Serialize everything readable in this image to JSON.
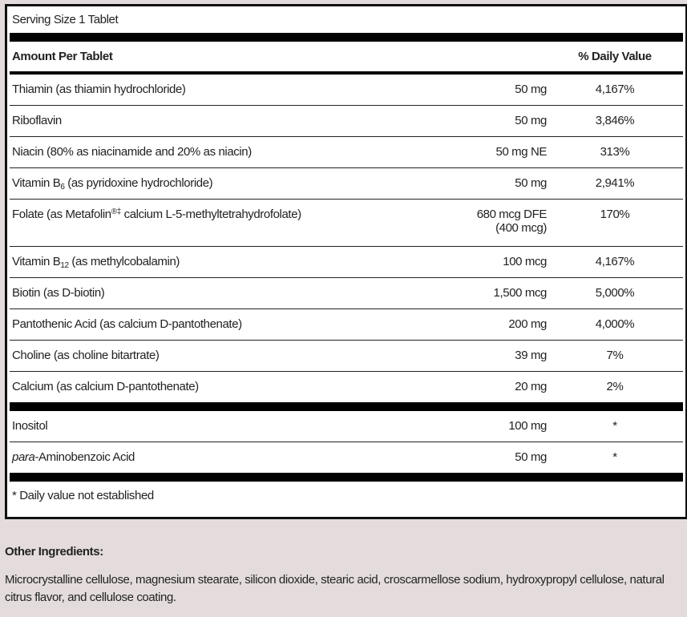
{
  "serving_size": "Serving Size 1 Tablet",
  "header": {
    "amount": "Amount Per Tablet",
    "dv": "% Daily Value"
  },
  "rows": [
    {
      "name": "Thiamin (as thiamin hydrochloride)",
      "amount": "50 mg",
      "dv": "4,167%"
    },
    {
      "name": "Riboflavin",
      "amount": "50 mg",
      "dv": "3,846%"
    },
    {
      "name": "Niacin (80% as niacinamide and 20% as niacin)",
      "amount": "50 mg NE",
      "dv": "313%"
    },
    {
      "name_pre": "Vitamin B",
      "name_sub": "6",
      "name_post": " (as pyridoxine hydrochloride)",
      "amount": "50 mg",
      "dv": "2,941%"
    },
    {
      "name_pre": "Folate (as Metafolin",
      "name_sup": "®‡",
      "name_post": " calcium L-5-methyltetrahydrofolate)",
      "amount": "680 mcg DFE",
      "amount2": "(400 mcg)",
      "dv": "170%"
    },
    {
      "name_pre": "Vitamin B",
      "name_sub": "12",
      "name_post": " (as methylcobalamin)",
      "amount": "100 mcg",
      "dv": "4,167%"
    },
    {
      "name": "Biotin (as D-biotin)",
      "amount": "1,500 mcg",
      "dv": "5,000%"
    },
    {
      "name": "Pantothenic Acid (as calcium D-pantothenate)",
      "amount": "200 mg",
      "dv": "4,000%"
    },
    {
      "name": "Choline (as choline bitartrate)",
      "amount": "39 mg",
      "dv": "7%"
    },
    {
      "name": "Calcium (as calcium D-pantothenate)",
      "amount": "20 mg",
      "dv": "2%"
    }
  ],
  "rows2": [
    {
      "name": "Inositol",
      "amount": "100 mg",
      "dv": "*"
    },
    {
      "name_italic": "para",
      "name_post": "-Aminobenzoic Acid",
      "amount": "50 mg",
      "dv": "*"
    }
  ],
  "footnote": "* Daily value not established",
  "other": {
    "title": "Other Ingredients:",
    "text": "Microcrystalline cellulose, magnesium stearate, silicon dioxide, stearic acid, croscarmellose sodium, hydroxypropyl cellulose, natural citrus flavor, and cellulose coating."
  },
  "colors": {
    "background": "#e4dcdc",
    "rule": "#000000"
  }
}
